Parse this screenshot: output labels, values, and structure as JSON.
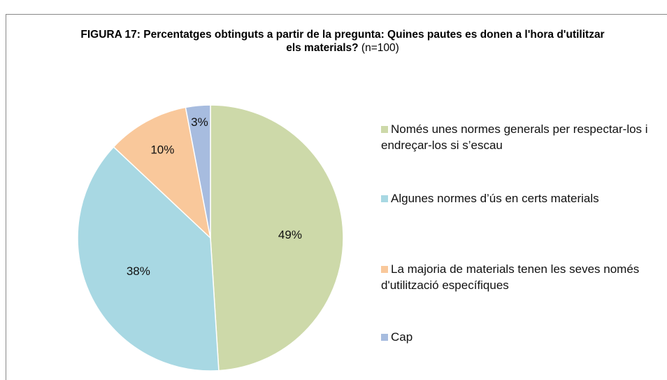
{
  "chart_data": {
    "type": "pie",
    "title": "FIGURA 17: Percentatges obtinguts a partir de la pregunta: Quines pautes es donen a l'hora d'utilitzar els materials?",
    "subtitle": "(n=100)",
    "categories": [
      "Només unes normes generals per respectar-los i endreçar-los si s’escau",
      "Algunes normes d’ús en certs materials",
      "La majoria de materials tenen les seves només d'utilització específiques",
      "Cap"
    ],
    "values": [
      49,
      38,
      10,
      3
    ],
    "value_labels": [
      "49%",
      "38%",
      "10%",
      "3%"
    ],
    "colors": [
      "#cdd9a9",
      "#a8d8e3",
      "#f9c89b",
      "#a7bcdf"
    ],
    "legend": "right"
  }
}
